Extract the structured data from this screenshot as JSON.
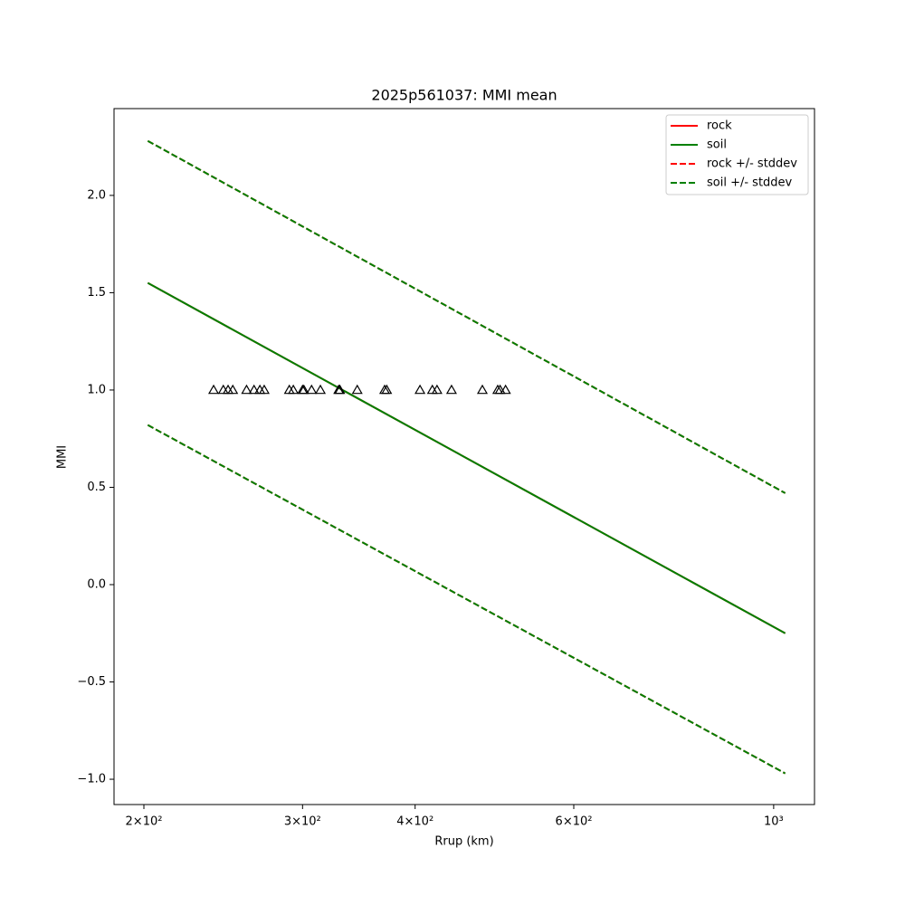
{
  "chart_data": {
    "type": "line",
    "title": "2025p561037: MMI mean",
    "xlabel": "Rrup (km)",
    "ylabel": "MMI",
    "xscale": "log",
    "xlim": [
      185.3,
      1110
    ],
    "ylim": [
      -1.13,
      2.446
    ],
    "xticks": [
      {
        "value": 200,
        "label": "2×10²"
      },
      {
        "value": 300,
        "label": "3×10²"
      },
      {
        "value": 400,
        "label": "4×10²"
      },
      {
        "value": 600,
        "label": "6×10²"
      },
      {
        "value": 1000,
        "label": "10³"
      }
    ],
    "yticks": [
      {
        "value": -1,
        "label": "−1.0"
      },
      {
        "value": -0.5,
        "label": "−0.5"
      },
      {
        "value": 0,
        "label": "0.0"
      },
      {
        "value": 0.5,
        "label": "0.5"
      },
      {
        "value": 1,
        "label": "1.0"
      },
      {
        "value": 1.5,
        "label": "1.5"
      },
      {
        "value": 2,
        "label": "2.0"
      }
    ],
    "x": [
      202,
      1030
    ],
    "series": [
      {
        "name": "rock",
        "color": "#ff0000",
        "linestyle": "solid",
        "values": [
          1.55,
          -0.25
        ]
      },
      {
        "name": "soil",
        "color": "#008000",
        "linestyle": "solid",
        "values": [
          1.55,
          -0.25
        ]
      },
      {
        "name": "rock +/- stddev",
        "color": "#ff0000",
        "linestyle": "dashed",
        "upper": [
          2.28,
          0.47
        ],
        "lower": [
          0.82,
          -0.97
        ]
      },
      {
        "name": "soil +/- stddev",
        "color": "#008000",
        "linestyle": "dashed",
        "upper": [
          2.28,
          0.47
        ],
        "lower": [
          0.82,
          -0.97
        ]
      }
    ],
    "points": {
      "marker": "triangle",
      "color": "#000000",
      "x": [
        239,
        245,
        248,
        251,
        260,
        265,
        269,
        272,
        290,
        293,
        300,
        301,
        307,
        314,
        329,
        330,
        345,
        370,
        372,
        405,
        418,
        423,
        439,
        475,
        494,
        497,
        504
      ],
      "values": [
        1,
        1,
        1,
        1,
        1,
        1,
        1,
        1,
        1,
        1,
        1,
        1,
        1,
        1,
        1,
        1,
        1,
        1,
        1,
        1,
        1,
        1,
        1,
        1,
        1,
        1,
        1
      ]
    },
    "legend": "upper right"
  }
}
